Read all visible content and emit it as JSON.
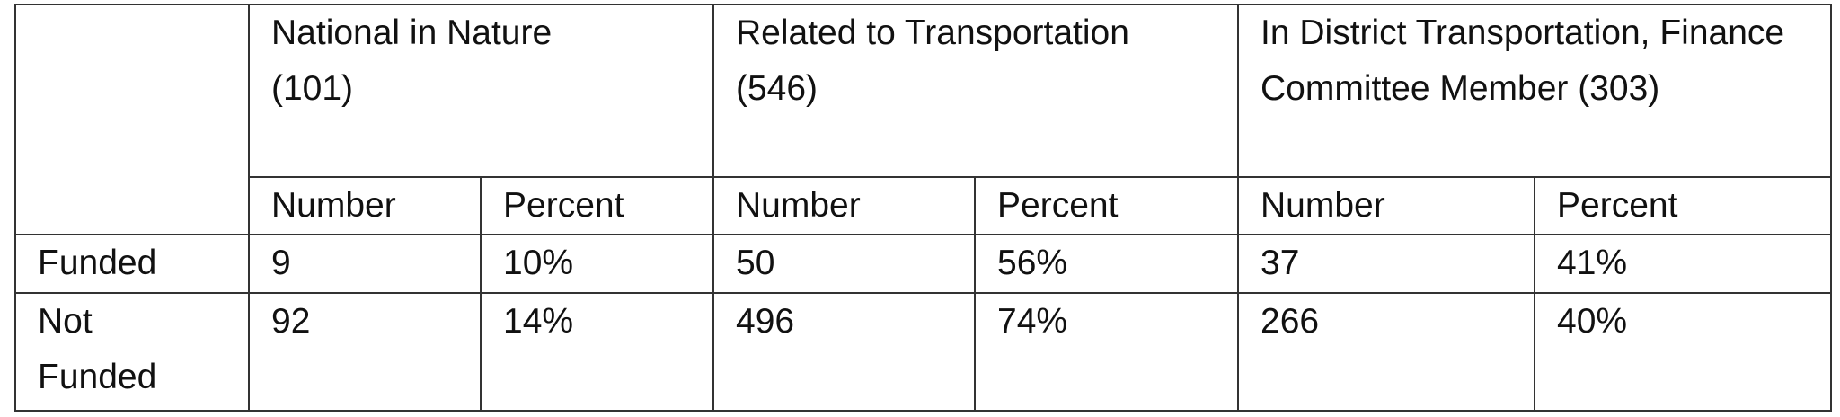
{
  "table": {
    "groups": [
      "National in Nature (101)",
      "Related to Transportation (546)",
      "In District Transportation, Finance Committee Member (303)"
    ],
    "subheaders": [
      "Number",
      "Percent",
      "Number",
      "Percent",
      "Number",
      "Percent"
    ],
    "rows": [
      [
        "Funded",
        "9",
        "10%",
        "50",
        "56%",
        "37",
        "41%"
      ],
      [
        "Not Funded",
        "92",
        "14%",
        "496",
        "74%",
        "266",
        "40%"
      ]
    ]
  }
}
